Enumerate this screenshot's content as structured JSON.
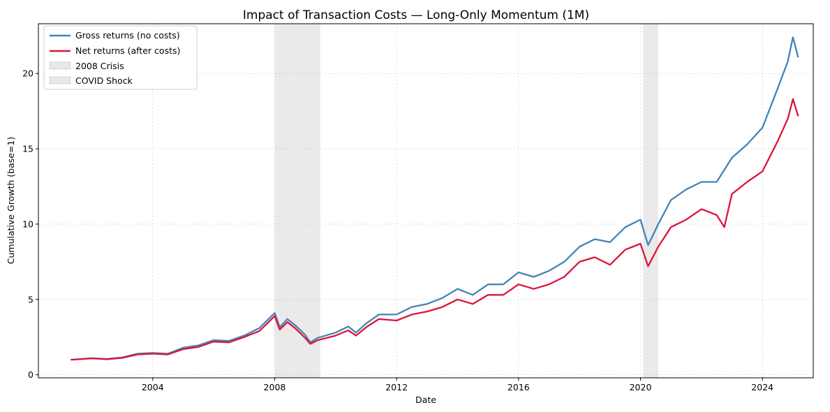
{
  "chart_data": {
    "type": "line",
    "title": "Impact of Transaction Costs — Long-Only Momentum (1M)",
    "xlabel": "Date",
    "ylabel": "Cumulative Growth (base=1)",
    "xlim": [
      "2000-04-01",
      "2025-09-01"
    ],
    "ylim": [
      -0.2,
      23.3
    ],
    "x_ticks": [
      "2004",
      "2008",
      "2012",
      "2016",
      "2020",
      "2024"
    ],
    "y_ticks": [
      "0",
      "5",
      "10",
      "15",
      "20"
    ],
    "grid": true,
    "legend_position": "upper-left",
    "shaded_regions": [
      {
        "name": "2008 Crisis",
        "start": "2008-01-01",
        "end": "2009-06-30",
        "color": "#d9d9d9"
      },
      {
        "name": "COVID Shock",
        "start": "2020-02-01",
        "end": "2020-08-01",
        "color": "#d9d9d9"
      }
    ],
    "series": [
      {
        "name": "Gross returns (no costs)",
        "color": "#4682b4",
        "points": [
          [
            "2001-05-01",
            1.0
          ],
          [
            "2002-01-01",
            1.1
          ],
          [
            "2002-07-01",
            1.05
          ],
          [
            "2003-01-01",
            1.15
          ],
          [
            "2003-07-01",
            1.4
          ],
          [
            "2004-01-01",
            1.45
          ],
          [
            "2004-07-01",
            1.4
          ],
          [
            "2005-01-01",
            1.8
          ],
          [
            "2005-07-01",
            1.95
          ],
          [
            "2006-01-01",
            2.3
          ],
          [
            "2006-07-01",
            2.25
          ],
          [
            "2007-01-01",
            2.6
          ],
          [
            "2007-07-01",
            3.1
          ],
          [
            "2008-01-01",
            4.1
          ],
          [
            "2008-03-01",
            3.15
          ],
          [
            "2008-06-01",
            3.7
          ],
          [
            "2008-09-01",
            3.3
          ],
          [
            "2009-01-01",
            2.65
          ],
          [
            "2009-03-01",
            2.15
          ],
          [
            "2009-06-01",
            2.45
          ],
          [
            "2010-01-01",
            2.8
          ],
          [
            "2010-06-01",
            3.2
          ],
          [
            "2010-09-01",
            2.8
          ],
          [
            "2011-01-01",
            3.4
          ],
          [
            "2011-06-01",
            4.0
          ],
          [
            "2012-01-01",
            4.0
          ],
          [
            "2012-07-01",
            4.5
          ],
          [
            "2013-01-01",
            4.7
          ],
          [
            "2013-07-01",
            5.1
          ],
          [
            "2014-01-01",
            5.7
          ],
          [
            "2014-07-01",
            5.3
          ],
          [
            "2015-01-01",
            6.0
          ],
          [
            "2015-07-01",
            6.0
          ],
          [
            "2016-01-01",
            6.8
          ],
          [
            "2016-07-01",
            6.5
          ],
          [
            "2017-01-01",
            6.9
          ],
          [
            "2017-07-01",
            7.5
          ],
          [
            "2018-01-01",
            8.5
          ],
          [
            "2018-07-01",
            9.0
          ],
          [
            "2019-01-01",
            8.8
          ],
          [
            "2019-07-01",
            9.8
          ],
          [
            "2020-01-01",
            10.3
          ],
          [
            "2020-04-01",
            8.6
          ],
          [
            "2020-08-01",
            10.0
          ],
          [
            "2021-01-01",
            11.6
          ],
          [
            "2021-07-01",
            12.3
          ],
          [
            "2022-01-01",
            12.8
          ],
          [
            "2022-07-01",
            12.8
          ],
          [
            "2023-01-01",
            14.4
          ],
          [
            "2023-07-01",
            15.3
          ],
          [
            "2024-01-01",
            16.4
          ],
          [
            "2024-07-01",
            19.0
          ],
          [
            "2024-11-01",
            20.8
          ],
          [
            "2025-01-01",
            22.4
          ],
          [
            "2025-03-01",
            21.1
          ]
        ]
      },
      {
        "name": "Net returns (after costs)",
        "color": "#dc143c",
        "points": [
          [
            "2001-05-01",
            1.0
          ],
          [
            "2002-01-01",
            1.09
          ],
          [
            "2002-07-01",
            1.03
          ],
          [
            "2003-01-01",
            1.12
          ],
          [
            "2003-07-01",
            1.35
          ],
          [
            "2004-01-01",
            1.4
          ],
          [
            "2004-07-01",
            1.35
          ],
          [
            "2005-01-01",
            1.7
          ],
          [
            "2005-07-01",
            1.85
          ],
          [
            "2006-01-01",
            2.2
          ],
          [
            "2006-07-01",
            2.15
          ],
          [
            "2007-01-01",
            2.5
          ],
          [
            "2007-07-01",
            2.9
          ],
          [
            "2008-01-01",
            3.9
          ],
          [
            "2008-03-01",
            3.0
          ],
          [
            "2008-06-01",
            3.5
          ],
          [
            "2008-09-01",
            3.1
          ],
          [
            "2009-01-01",
            2.45
          ],
          [
            "2009-03-01",
            2.05
          ],
          [
            "2009-06-01",
            2.3
          ],
          [
            "2010-01-01",
            2.6
          ],
          [
            "2010-06-01",
            2.95
          ],
          [
            "2010-09-01",
            2.6
          ],
          [
            "2011-01-01",
            3.15
          ],
          [
            "2011-06-01",
            3.7
          ],
          [
            "2012-01-01",
            3.6
          ],
          [
            "2012-07-01",
            4.0
          ],
          [
            "2013-01-01",
            4.2
          ],
          [
            "2013-07-01",
            4.5
          ],
          [
            "2014-01-01",
            5.0
          ],
          [
            "2014-07-01",
            4.7
          ],
          [
            "2015-01-01",
            5.3
          ],
          [
            "2015-07-01",
            5.3
          ],
          [
            "2016-01-01",
            6.0
          ],
          [
            "2016-07-01",
            5.7
          ],
          [
            "2017-01-01",
            6.0
          ],
          [
            "2017-07-01",
            6.5
          ],
          [
            "2018-01-01",
            7.5
          ],
          [
            "2018-07-01",
            7.8
          ],
          [
            "2019-01-01",
            7.3
          ],
          [
            "2019-07-01",
            8.3
          ],
          [
            "2020-01-01",
            8.7
          ],
          [
            "2020-04-01",
            7.2
          ],
          [
            "2020-08-01",
            8.5
          ],
          [
            "2021-01-01",
            9.8
          ],
          [
            "2021-07-01",
            10.3
          ],
          [
            "2022-01-01",
            11.0
          ],
          [
            "2022-07-01",
            10.6
          ],
          [
            "2022-10-01",
            9.8
          ],
          [
            "2023-01-01",
            12.0
          ],
          [
            "2023-07-01",
            12.8
          ],
          [
            "2024-01-01",
            13.5
          ],
          [
            "2024-07-01",
            15.5
          ],
          [
            "2024-11-01",
            17.0
          ],
          [
            "2025-01-01",
            18.3
          ],
          [
            "2025-03-01",
            17.2
          ]
        ]
      }
    ]
  }
}
